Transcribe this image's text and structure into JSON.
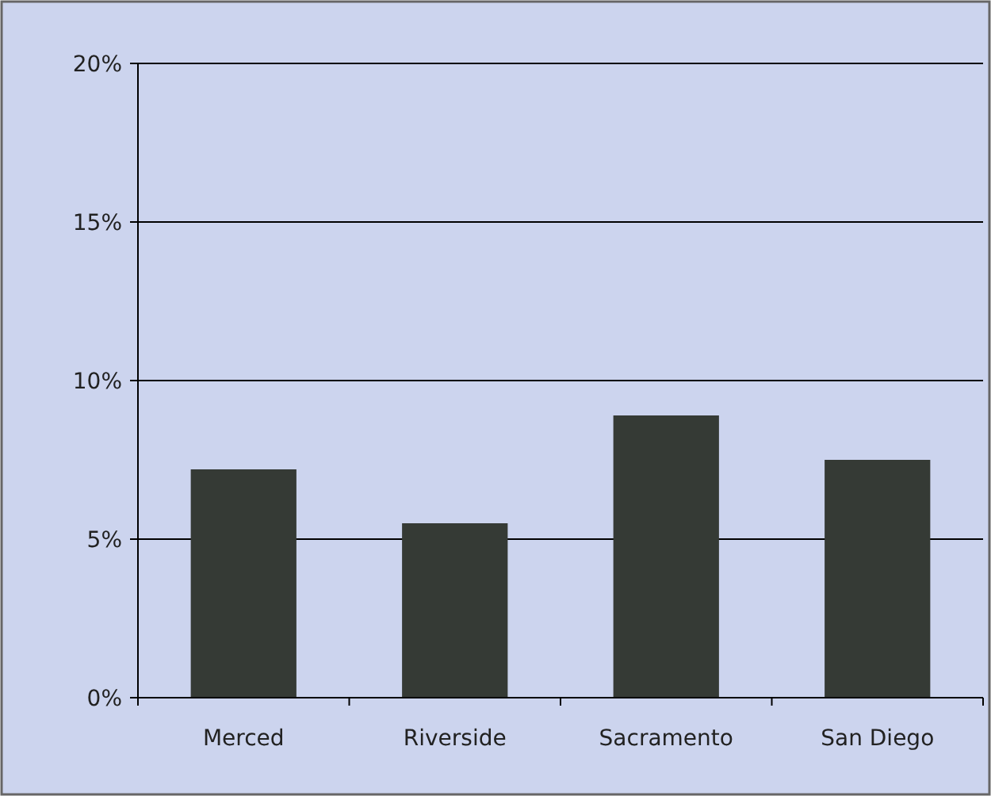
{
  "chart_data": {
    "type": "bar",
    "categories": [
      "Merced",
      "Riverside",
      "Sacramento",
      "San Diego"
    ],
    "values": [
      7.2,
      5.5,
      8.9,
      7.5
    ],
    "color": "#353a35",
    "ylim": [
      0,
      20
    ],
    "yticks": [
      {
        "value": 0,
        "label": "0%"
      },
      {
        "value": 5,
        "label": "5%"
      },
      {
        "value": 10,
        "label": "10%"
      },
      {
        "value": 15,
        "label": "15%"
      },
      {
        "value": 20,
        "label": "20%"
      }
    ],
    "grid": "y"
  }
}
